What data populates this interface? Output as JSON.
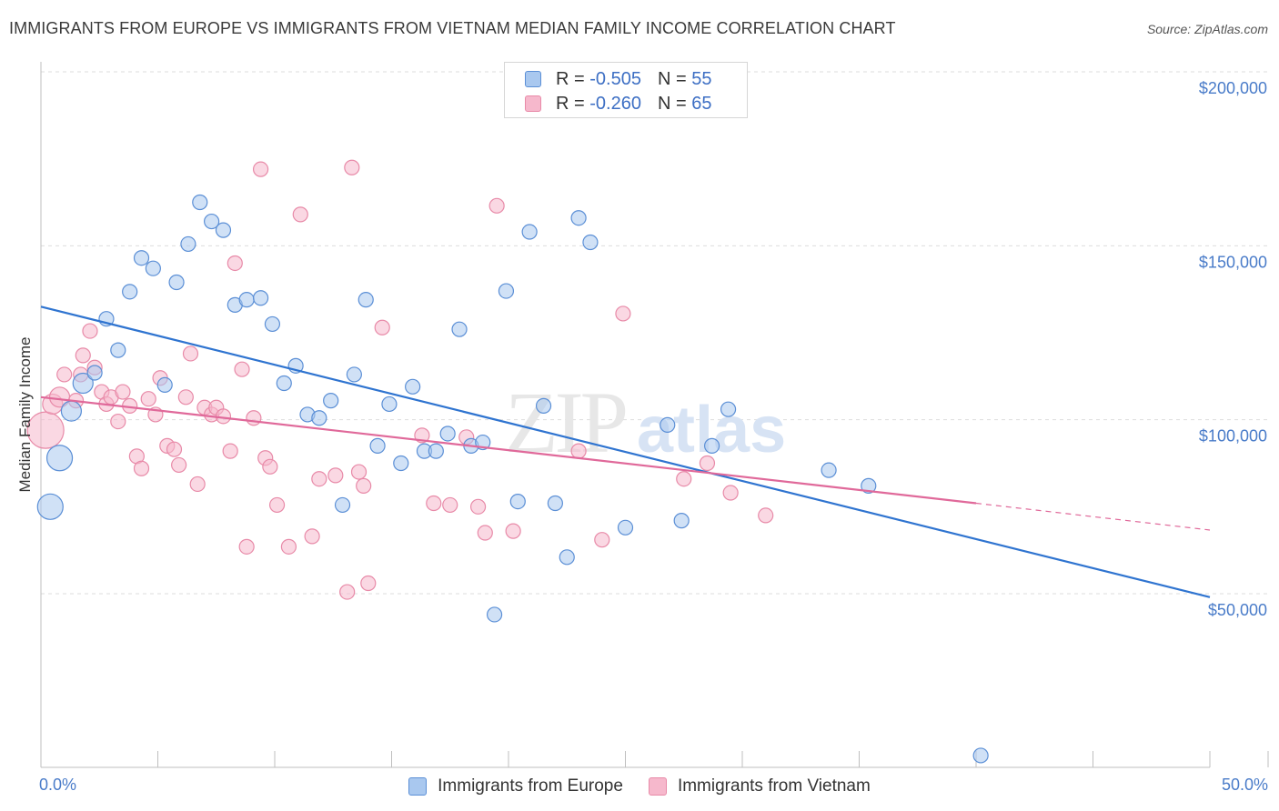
{
  "title": "IMMIGRANTS FROM EUROPE VS IMMIGRANTS FROM VIETNAM MEDIAN FAMILY INCOME CORRELATION CHART",
  "source": "Source: ZipAtlas.com",
  "watermark": "ZIPatlas",
  "colors": {
    "europe_fill": "#a9c8ef",
    "europe_stroke": "#5b8fd6",
    "europe_line": "#2f74d0",
    "vietnam_fill": "#f6b8cc",
    "vietnam_stroke": "#e88aa8",
    "vietnam_line": "#e0699a",
    "tick_text": "#4a7cc9",
    "grid": "#dddddd"
  },
  "legend_top": [
    {
      "r_label": "R =",
      "r_value": "-0.505",
      "n_label": "N =",
      "n_value": "55"
    },
    {
      "r_label": "R =",
      "r_value": "-0.260",
      "n_label": "N =",
      "n_value": "65"
    }
  ],
  "legend_bottom": [
    "Immigrants from Europe",
    "Immigrants from Vietnam"
  ],
  "chart_data": {
    "type": "scatter",
    "title": "IMMIGRANTS FROM EUROPE VS IMMIGRANTS FROM VIETNAM MEDIAN FAMILY INCOME CORRELATION CHART",
    "xlabel": "",
    "ylabel": "Median Family Income",
    "xlim": [
      0,
      50
    ],
    "ylim": [
      0,
      205000
    ],
    "x_tick_labels": [
      "0.0%",
      "50.0%"
    ],
    "y_ticks": [
      50000,
      100000,
      150000,
      200000
    ],
    "y_tick_labels": [
      "$50,000",
      "$100,000",
      "$150,000",
      "$200,000"
    ],
    "grid": true,
    "legend_position": "top-center",
    "series": [
      {
        "name": "Immigrants from Europe",
        "R": -0.505,
        "N": 55,
        "trend": {
          "x": [
            0,
            50
          ],
          "y": [
            132500,
            49000
          ]
        },
        "points": [
          {
            "x": 0.4,
            "y": 75000,
            "s": 3
          },
          {
            "x": 0.8,
            "y": 89000,
            "s": 3
          },
          {
            "x": 1.3,
            "y": 102500,
            "s": 2
          },
          {
            "x": 1.8,
            "y": 110500,
            "s": 2
          },
          {
            "x": 2.3,
            "y": 113500,
            "s": 1
          },
          {
            "x": 2.8,
            "y": 129000,
            "s": 1
          },
          {
            "x": 3.3,
            "y": 120000,
            "s": 1
          },
          {
            "x": 3.8,
            "y": 136800,
            "s": 1
          },
          {
            "x": 4.3,
            "y": 146500,
            "s": 1
          },
          {
            "x": 4.8,
            "y": 143500,
            "s": 1
          },
          {
            "x": 5.3,
            "y": 110000,
            "s": 1
          },
          {
            "x": 5.8,
            "y": 139500,
            "s": 1
          },
          {
            "x": 6.3,
            "y": 150500,
            "s": 1
          },
          {
            "x": 6.8,
            "y": 162500,
            "s": 1
          },
          {
            "x": 7.3,
            "y": 157000,
            "s": 1
          },
          {
            "x": 7.8,
            "y": 154500,
            "s": 1
          },
          {
            "x": 8.3,
            "y": 133000,
            "s": 1
          },
          {
            "x": 8.8,
            "y": 134500,
            "s": 1
          },
          {
            "x": 9.4,
            "y": 135000,
            "s": 1
          },
          {
            "x": 9.9,
            "y": 127500,
            "s": 1
          },
          {
            "x": 10.4,
            "y": 110500,
            "s": 1
          },
          {
            "x": 10.9,
            "y": 115500,
            "s": 1
          },
          {
            "x": 11.4,
            "y": 101500,
            "s": 1
          },
          {
            "x": 11.9,
            "y": 100500,
            "s": 1
          },
          {
            "x": 12.4,
            "y": 105500,
            "s": 1
          },
          {
            "x": 12.9,
            "y": 75500,
            "s": 1
          },
          {
            "x": 13.4,
            "y": 113000,
            "s": 1
          },
          {
            "x": 13.9,
            "y": 134500,
            "s": 1
          },
          {
            "x": 14.4,
            "y": 92500,
            "s": 1
          },
          {
            "x": 14.9,
            "y": 104500,
            "s": 1
          },
          {
            "x": 15.4,
            "y": 87500,
            "s": 1
          },
          {
            "x": 15.9,
            "y": 109500,
            "s": 1
          },
          {
            "x": 16.4,
            "y": 91000,
            "s": 1
          },
          {
            "x": 16.9,
            "y": 91000,
            "s": 1
          },
          {
            "x": 17.4,
            "y": 96000,
            "s": 1
          },
          {
            "x": 17.9,
            "y": 126000,
            "s": 1
          },
          {
            "x": 18.4,
            "y": 92500,
            "s": 1
          },
          {
            "x": 18.9,
            "y": 93500,
            "s": 1
          },
          {
            "x": 19.4,
            "y": 44000,
            "s": 1
          },
          {
            "x": 19.9,
            "y": 137000,
            "s": 1
          },
          {
            "x": 20.4,
            "y": 76500,
            "s": 1
          },
          {
            "x": 20.9,
            "y": 154000,
            "s": 1
          },
          {
            "x": 21.5,
            "y": 104000,
            "s": 1
          },
          {
            "x": 22.0,
            "y": 76000,
            "s": 1
          },
          {
            "x": 22.5,
            "y": 60500,
            "s": 1
          },
          {
            "x": 23.0,
            "y": 158000,
            "s": 1
          },
          {
            "x": 23.5,
            "y": 151000,
            "s": 1
          },
          {
            "x": 25.0,
            "y": 69000,
            "s": 1
          },
          {
            "x": 26.8,
            "y": 98500,
            "s": 1
          },
          {
            "x": 27.4,
            "y": 71000,
            "s": 1
          },
          {
            "x": 28.7,
            "y": 92500,
            "s": 1
          },
          {
            "x": 29.4,
            "y": 103000,
            "s": 1
          },
          {
            "x": 33.7,
            "y": 85500,
            "s": 1
          },
          {
            "x": 35.4,
            "y": 81000,
            "s": 1
          },
          {
            "x": 40.2,
            "y": 3500,
            "s": 1
          }
        ]
      },
      {
        "name": "Immigrants from Vietnam",
        "R": -0.26,
        "N": 65,
        "trend": {
          "x": [
            0,
            40
          ],
          "y": [
            106500,
            76000
          ]
        },
        "trend_extension": {
          "x": [
            40,
            50
          ],
          "y": [
            76000,
            68300
          ]
        },
        "points": [
          {
            "x": 0.2,
            "y": 97000,
            "s": 4
          },
          {
            "x": 0.5,
            "y": 104500,
            "s": 2
          },
          {
            "x": 0.8,
            "y": 106500,
            "s": 2
          },
          {
            "x": 1.0,
            "y": 113000,
            "s": 1
          },
          {
            "x": 1.5,
            "y": 105500,
            "s": 1
          },
          {
            "x": 1.7,
            "y": 113000,
            "s": 1
          },
          {
            "x": 1.8,
            "y": 118500,
            "s": 1
          },
          {
            "x": 2.1,
            "y": 125500,
            "s": 1
          },
          {
            "x": 2.3,
            "y": 115000,
            "s": 1
          },
          {
            "x": 2.6,
            "y": 108000,
            "s": 1
          },
          {
            "x": 2.8,
            "y": 104500,
            "s": 1
          },
          {
            "x": 3.0,
            "y": 106500,
            "s": 1
          },
          {
            "x": 3.3,
            "y": 99500,
            "s": 1
          },
          {
            "x": 3.5,
            "y": 108000,
            "s": 1
          },
          {
            "x": 3.8,
            "y": 104000,
            "s": 1
          },
          {
            "x": 4.1,
            "y": 89500,
            "s": 1
          },
          {
            "x": 4.3,
            "y": 86000,
            "s": 1
          },
          {
            "x": 4.6,
            "y": 106000,
            "s": 1
          },
          {
            "x": 4.9,
            "y": 101500,
            "s": 1
          },
          {
            "x": 5.1,
            "y": 112000,
            "s": 1
          },
          {
            "x": 5.4,
            "y": 92500,
            "s": 1
          },
          {
            "x": 5.7,
            "y": 91500,
            "s": 1
          },
          {
            "x": 5.9,
            "y": 87000,
            "s": 1
          },
          {
            "x": 6.2,
            "y": 106500,
            "s": 1
          },
          {
            "x": 6.4,
            "y": 119000,
            "s": 1
          },
          {
            "x": 6.7,
            "y": 81500,
            "s": 1
          },
          {
            "x": 7.0,
            "y": 103500,
            "s": 1
          },
          {
            "x": 7.3,
            "y": 101500,
            "s": 1
          },
          {
            "x": 7.5,
            "y": 103500,
            "s": 1
          },
          {
            "x": 7.8,
            "y": 101000,
            "s": 1
          },
          {
            "x": 8.1,
            "y": 91000,
            "s": 1
          },
          {
            "x": 8.3,
            "y": 145000,
            "s": 1
          },
          {
            "x": 8.6,
            "y": 114500,
            "s": 1
          },
          {
            "x": 8.8,
            "y": 63500,
            "s": 1
          },
          {
            "x": 9.1,
            "y": 100500,
            "s": 1
          },
          {
            "x": 9.4,
            "y": 172000,
            "s": 1
          },
          {
            "x": 9.6,
            "y": 89000,
            "s": 1
          },
          {
            "x": 9.8,
            "y": 86500,
            "s": 1
          },
          {
            "x": 10.1,
            "y": 75500,
            "s": 1
          },
          {
            "x": 10.6,
            "y": 63500,
            "s": 1
          },
          {
            "x": 11.1,
            "y": 159000,
            "s": 1
          },
          {
            "x": 11.6,
            "y": 66500,
            "s": 1
          },
          {
            "x": 11.9,
            "y": 83000,
            "s": 1
          },
          {
            "x": 12.6,
            "y": 84000,
            "s": 1
          },
          {
            "x": 13.1,
            "y": 50500,
            "s": 1
          },
          {
            "x": 13.3,
            "y": 172500,
            "s": 1
          },
          {
            "x": 13.6,
            "y": 85000,
            "s": 1
          },
          {
            "x": 13.8,
            "y": 81000,
            "s": 1
          },
          {
            "x": 14.0,
            "y": 53000,
            "s": 1
          },
          {
            "x": 14.6,
            "y": 126500,
            "s": 1
          },
          {
            "x": 16.3,
            "y": 95500,
            "s": 1
          },
          {
            "x": 16.8,
            "y": 76000,
            "s": 1
          },
          {
            "x": 17.5,
            "y": 75500,
            "s": 1
          },
          {
            "x": 18.2,
            "y": 95000,
            "s": 1
          },
          {
            "x": 18.7,
            "y": 75000,
            "s": 1
          },
          {
            "x": 19.0,
            "y": 67500,
            "s": 1
          },
          {
            "x": 19.5,
            "y": 161500,
            "s": 1
          },
          {
            "x": 20.2,
            "y": 68000,
            "s": 1
          },
          {
            "x": 23.0,
            "y": 91000,
            "s": 1
          },
          {
            "x": 24.0,
            "y": 65500,
            "s": 1
          },
          {
            "x": 24.9,
            "y": 130500,
            "s": 1
          },
          {
            "x": 27.5,
            "y": 83000,
            "s": 1
          },
          {
            "x": 28.5,
            "y": 87500,
            "s": 1
          },
          {
            "x": 29.5,
            "y": 79000,
            "s": 1
          },
          {
            "x": 31.0,
            "y": 72500,
            "s": 1
          }
        ]
      }
    ]
  }
}
